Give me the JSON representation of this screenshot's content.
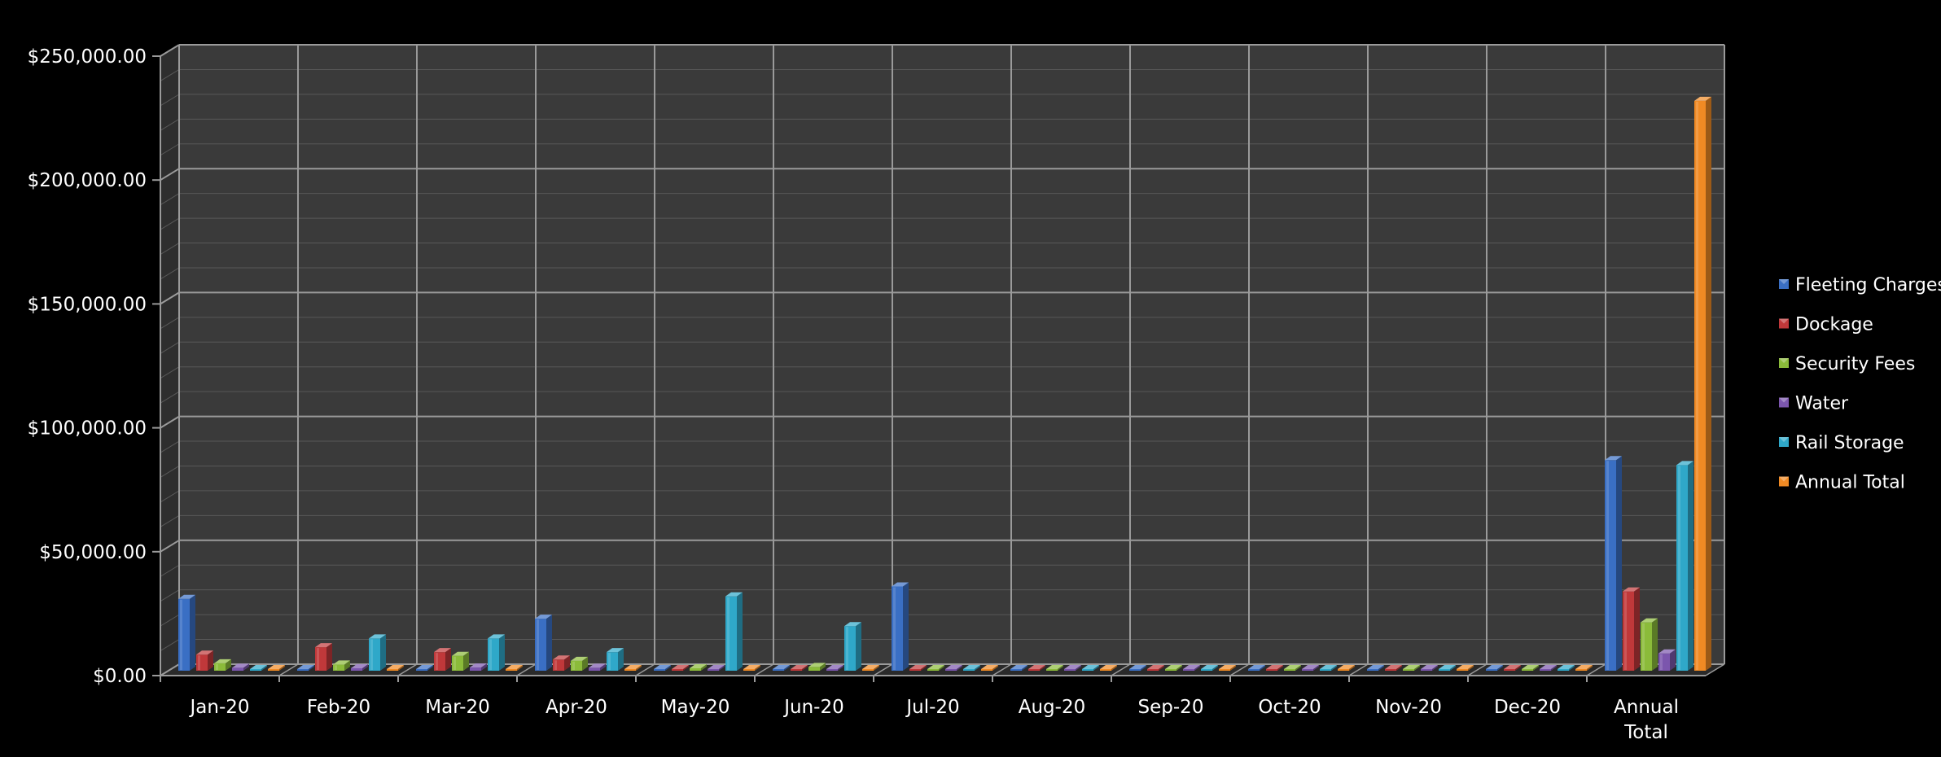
{
  "colors": {
    "background": "#000000",
    "plot_back": "#3a3a3a",
    "plot_floor": "#2a2a2a",
    "grid_major": "#9a9a9a",
    "grid_minor": "#585858",
    "text": "#ffffff"
  },
  "chart_data": {
    "type": "bar",
    "title": "",
    "xlabel": "",
    "ylabel": "",
    "ylim": [
      0,
      250000
    ],
    "y_major_step": 50000,
    "y_minor_step": 10000,
    "y_ticks": [
      "$0.00",
      "$50,000.00",
      "$100,000.00",
      "$150,000.00",
      "$200,000.00",
      "$250,000.00"
    ],
    "categories": [
      "Jan-20",
      "Feb-20",
      "Mar-20",
      "Apr-20",
      "May-20",
      "Jun-20",
      "Jul-20",
      "Aug-20",
      "Sep-20",
      "Oct-20",
      "Nov-20",
      "Dec-20",
      "Annual Total"
    ],
    "legend_position": "right",
    "grid": true,
    "style": "3d-clustered-column",
    "series": [
      {
        "name": "Fleeting Charges",
        "color": "#3a6fc4",
        "values": [
          29000,
          0,
          0,
          21000,
          0,
          0,
          34000,
          0,
          0,
          0,
          0,
          0,
          85000
        ]
      },
      {
        "name": "Dockage",
        "color": "#c0383a",
        "values": [
          6500,
          9500,
          7500,
          4500,
          300,
          400,
          0,
          0,
          0,
          0,
          0,
          0,
          32000
        ]
      },
      {
        "name": "Security Fees",
        "color": "#8bbb3a",
        "values": [
          3000,
          2500,
          6000,
          4000,
          1000,
          1500,
          0,
          0,
          0,
          0,
          0,
          0,
          19500
        ]
      },
      {
        "name": "Water",
        "color": "#7b56ad",
        "values": [
          1200,
          1000,
          1300,
          1200,
          300,
          300,
          0,
          0,
          0,
          0,
          0,
          0,
          7000
        ]
      },
      {
        "name": "Rail Storage",
        "color": "#2fa8c9",
        "values": [
          0,
          13000,
          13000,
          7500,
          30000,
          18000,
          0,
          0,
          0,
          0,
          0,
          0,
          83000
        ]
      },
      {
        "name": "Annual Total",
        "color": "#f08a24",
        "values": [
          0,
          0,
          0,
          0,
          0,
          0,
          0,
          0,
          0,
          0,
          0,
          0,
          230000
        ]
      }
    ]
  }
}
